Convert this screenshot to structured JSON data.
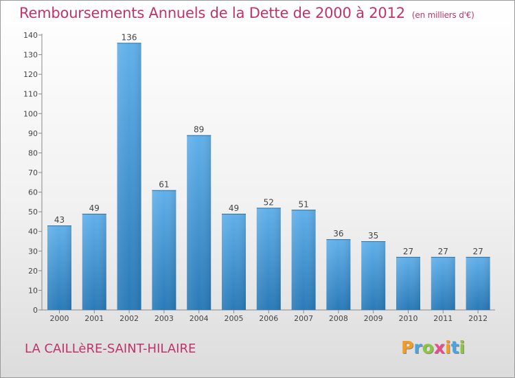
{
  "header": {
    "title": "Remboursements Annuels de la Dette de 2000 à 2012",
    "subtitle": "(en milliers d'€)"
  },
  "footer": {
    "commune": "LA CAILLèRE-SAINT-HILAIRE",
    "logo": {
      "letters": [
        "P",
        "r",
        "o",
        "x",
        "i",
        "t",
        "i"
      ],
      "colors": [
        "#f39c1f",
        "#4aa3df",
        "#8cc63f",
        "#e84c8b",
        "#f39c1f",
        "#4aa3df",
        "#8cc63f"
      ]
    }
  },
  "chart_data": {
    "type": "bar",
    "categories": [
      "2000",
      "2001",
      "2002",
      "2003",
      "2004",
      "2005",
      "2006",
      "2007",
      "2008",
      "2009",
      "2010",
      "2011",
      "2012"
    ],
    "values": [
      43,
      49,
      136,
      61,
      89,
      49,
      52,
      51,
      36,
      35,
      27,
      27,
      27
    ],
    "ylim": [
      0,
      140
    ],
    "yticks": [
      0,
      10,
      20,
      30,
      40,
      50,
      60,
      70,
      80,
      90,
      100,
      110,
      120,
      130,
      140
    ],
    "grid": false,
    "bar_color_light": "#62b0ea",
    "bar_color_dark": "#2a7ab8",
    "label_color": "#444444"
  }
}
